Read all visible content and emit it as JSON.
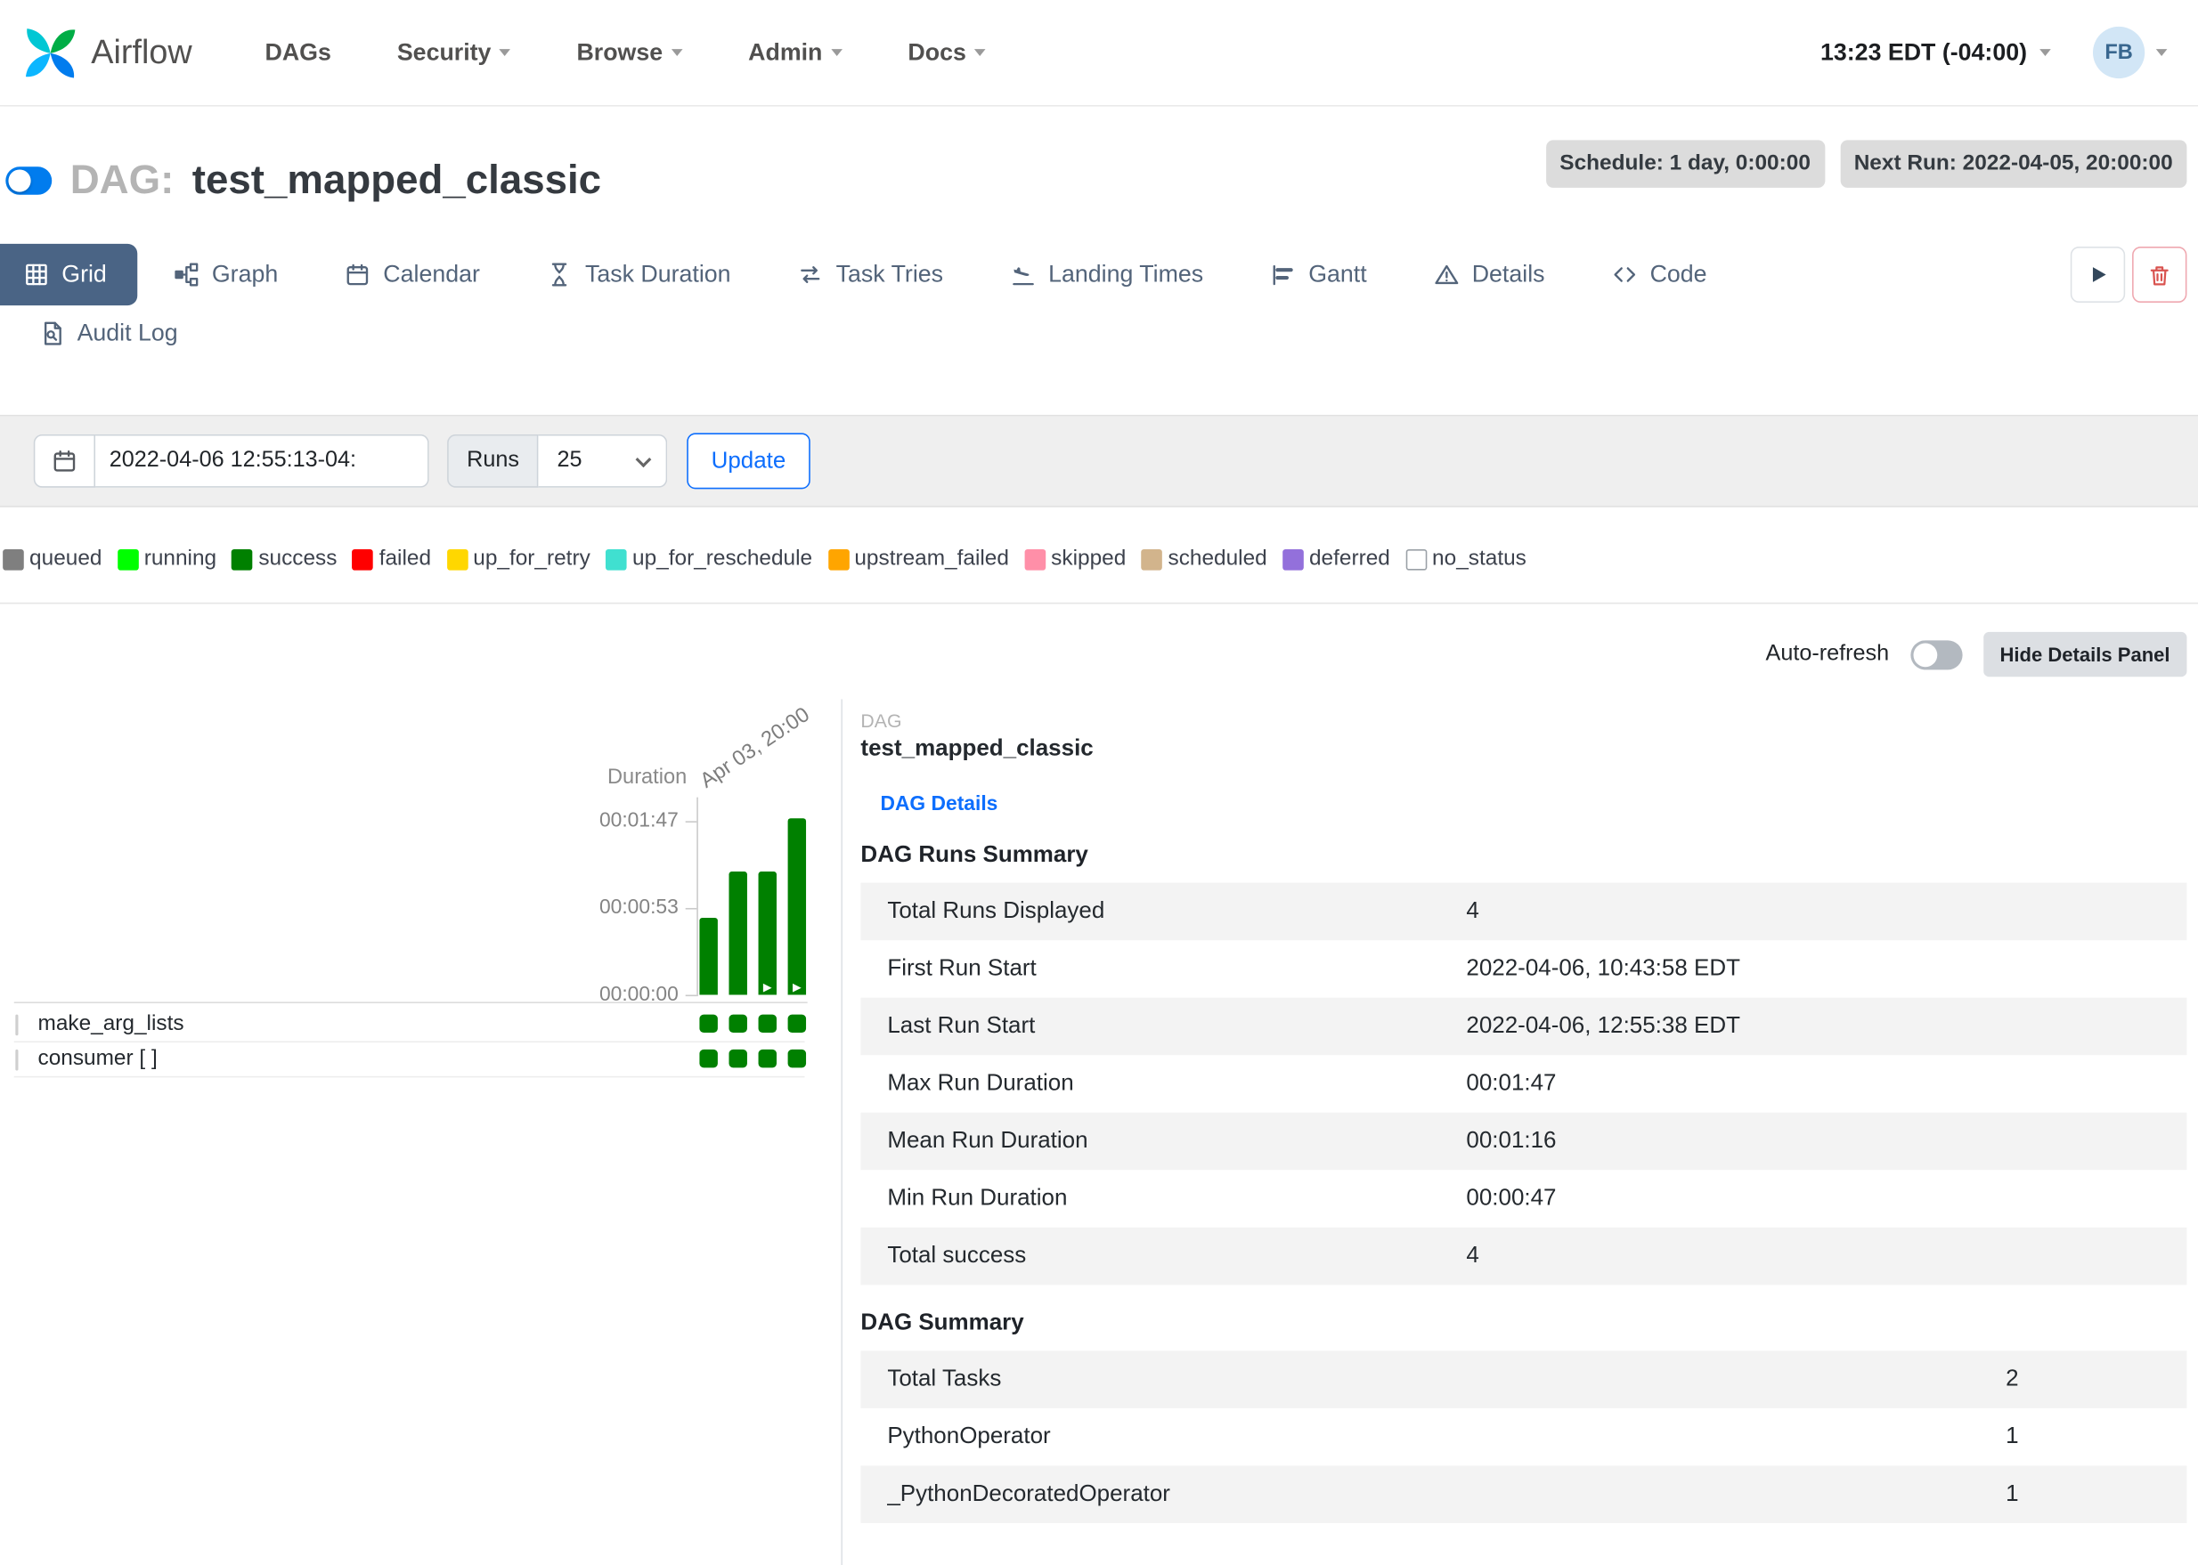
{
  "navbar": {
    "brand": "Airflow",
    "items": [
      {
        "label": "DAGs",
        "has_dropdown": false
      },
      {
        "label": "Security",
        "has_dropdown": true
      },
      {
        "label": "Browse",
        "has_dropdown": true
      },
      {
        "label": "Admin",
        "has_dropdown": true
      },
      {
        "label": "Docs",
        "has_dropdown": true
      }
    ],
    "clock": "13:23 EDT (-04:00)",
    "user_initials": "FB"
  },
  "dag_header": {
    "toggle_on": true,
    "prefix": "DAG:",
    "title": "test_mapped_classic",
    "badges": {
      "schedule": "Schedule: 1 day, 0:00:00",
      "next_run": "Next Run: 2022-04-05, 20:00:00"
    }
  },
  "tabs": [
    {
      "label": "Grid",
      "icon": "grid-icon",
      "active": true
    },
    {
      "label": "Graph",
      "icon": "graph-icon",
      "active": false
    },
    {
      "label": "Calendar",
      "icon": "calendar-icon",
      "active": false
    },
    {
      "label": "Task Duration",
      "icon": "hourglass-icon",
      "active": false
    },
    {
      "label": "Task Tries",
      "icon": "repeat-arrows-icon",
      "active": false
    },
    {
      "label": "Landing Times",
      "icon": "plane-landing-icon",
      "active": false
    },
    {
      "label": "Gantt",
      "icon": "gantt-bars-icon",
      "active": false
    },
    {
      "label": "Details",
      "icon": "warning-triangle-icon",
      "active": false
    },
    {
      "label": "Code",
      "icon": "code-brackets-icon",
      "active": false
    },
    {
      "label": "Audit Log",
      "icon": "audit-log-icon",
      "active": false
    }
  ],
  "actions": {
    "trigger_icon": "play-icon",
    "delete_icon": "trash-icon"
  },
  "filter_bar": {
    "calendar_icon": "calendar-icon",
    "base_date_value": "2022-04-06 12:55:13-04:",
    "runs_label": "Runs",
    "runs_selected": "25",
    "update_label": "Update"
  },
  "legend": [
    {
      "label": "queued",
      "color": "#7f7f7f",
      "bordered": false
    },
    {
      "label": "running",
      "color": "#00ff00",
      "bordered": false
    },
    {
      "label": "success",
      "color": "#008000",
      "bordered": false
    },
    {
      "label": "failed",
      "color": "#ff0000",
      "bordered": false
    },
    {
      "label": "up_for_retry",
      "color": "#ffd700",
      "bordered": false
    },
    {
      "label": "up_for_reschedule",
      "color": "#40e0d0",
      "bordered": false
    },
    {
      "label": "upstream_failed",
      "color": "#ffa500",
      "bordered": false
    },
    {
      "label": "skipped",
      "color": "#ff8fa8",
      "bordered": false
    },
    {
      "label": "scheduled",
      "color": "#d2b48c",
      "bordered": false
    },
    {
      "label": "deferred",
      "color": "#9370db",
      "bordered": false
    },
    {
      "label": "no_status",
      "color": "#ffffff",
      "bordered": true
    }
  ],
  "chart_data": {
    "type": "bar",
    "title": "",
    "ylabel": "Duration",
    "y_ticks": [
      "00:01:47",
      "00:00:53",
      "00:00:00"
    ],
    "ylim_seconds": [
      0,
      107
    ],
    "x_hover_label": "Apr 03, 20:00",
    "bar_color": "#008000",
    "runs": [
      {
        "duration": "00:00:47",
        "duration_seconds": 47,
        "state": "success",
        "manual": false
      },
      {
        "duration": "00:01:15",
        "duration_seconds": 75,
        "state": "success",
        "manual": false
      },
      {
        "duration": "00:01:15",
        "duration_seconds": 75,
        "state": "success",
        "manual": true
      },
      {
        "duration": "00:01:47",
        "duration_seconds": 107,
        "state": "success",
        "manual": true
      }
    ]
  },
  "grid_panel": {
    "duration_label": "Duration",
    "run_label": "Apr 03, 20:00",
    "tasks": [
      {
        "name": "make_arg_lists",
        "instances": [
          "success",
          "success",
          "success",
          "success"
        ]
      },
      {
        "name": "consumer [ ]",
        "instances": [
          "success",
          "success",
          "success",
          "success"
        ]
      }
    ]
  },
  "details_panel": {
    "auto_refresh_label": "Auto-refresh",
    "auto_refresh_on": false,
    "hide_panel_label": "Hide Details Panel",
    "dag_label": "DAG",
    "dag_name": "test_mapped_classic",
    "dag_details_link": "DAG Details",
    "runs_summary": {
      "title": "DAG Runs Summary",
      "rows": [
        {
          "label": "Total Runs Displayed",
          "value": "4"
        },
        {
          "label": "First Run Start",
          "value": "2022-04-06, 10:43:58 EDT"
        },
        {
          "label": "Last Run Start",
          "value": "2022-04-06, 12:55:38 EDT"
        },
        {
          "label": "Max Run Duration",
          "value": "00:01:47"
        },
        {
          "label": "Mean Run Duration",
          "value": "00:01:16"
        },
        {
          "label": "Min Run Duration",
          "value": "00:00:47"
        },
        {
          "label": "Total success",
          "value": "4"
        }
      ]
    },
    "dag_summary": {
      "title": "DAG Summary",
      "rows": [
        {
          "label": "Total Tasks",
          "value": "2"
        },
        {
          "label": "PythonOperator",
          "value": "1"
        },
        {
          "label": "_PythonDecoratedOperator",
          "value": "1"
        }
      ]
    }
  },
  "colors": {
    "brand_blue": "#017cee",
    "accent_blue": "#0d6efd",
    "active_tab_bg": "#4a6485",
    "badge_bg": "#dcdcdc",
    "danger_red": "#dc3545"
  }
}
